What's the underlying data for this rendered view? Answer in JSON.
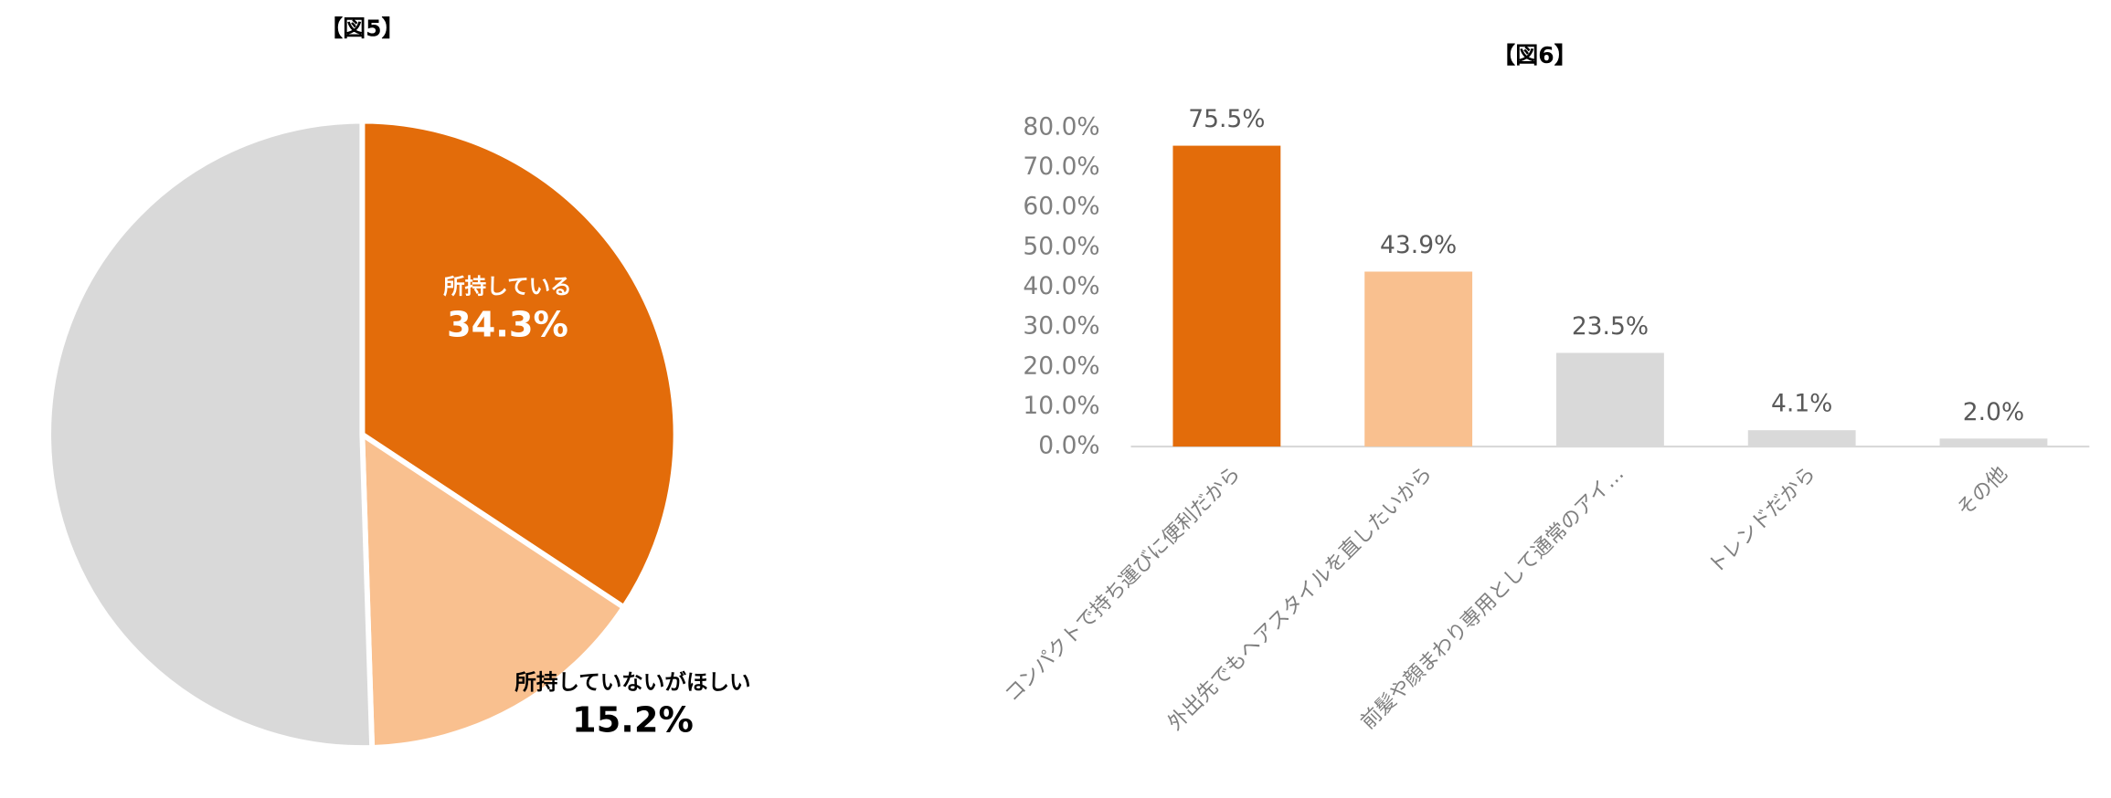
{
  "chart_data": [
    {
      "type": "pie",
      "title": "【図5】",
      "categories": [
        "所持している",
        "所持していないがほしい",
        null
      ],
      "values": [
        34.3,
        15.2,
        50.5
      ],
      "value_labels": [
        "34.3%",
        "15.2%",
        null
      ],
      "colors": [
        "#e36c0a",
        "#f9c08f",
        "#d9d9d9"
      ]
    },
    {
      "type": "bar",
      "title": "【図6】",
      "categories": [
        "コンパクトで持ち運びに便利だから",
        "外出先でもヘアスタイルを直したいから",
        "前髪や顔まわり専用として通常のアイ…",
        "トレンドだから",
        "その他"
      ],
      "values": [
        75.5,
        43.9,
        23.5,
        4.1,
        2.0
      ],
      "value_labels": [
        "75.5%",
        "43.9%",
        "23.5%",
        "4.1%",
        "2.0%"
      ],
      "colors": [
        "#e36c0a",
        "#f9c08f",
        "#d9d9d9",
        "#d9d9d9",
        "#d9d9d9"
      ],
      "ylim": [
        0,
        80
      ],
      "yticks": [
        {
          "value": 0,
          "label": "0.0%"
        },
        {
          "value": 10,
          "label": "10.0%"
        },
        {
          "value": 20,
          "label": "20.0%"
        },
        {
          "value": 30,
          "label": "30.0%"
        },
        {
          "value": 40,
          "label": "40.0%"
        },
        {
          "value": 50,
          "label": "50.0%"
        },
        {
          "value": 60,
          "label": "60.0%"
        },
        {
          "value": 70,
          "label": "70.0%"
        },
        {
          "value": 80,
          "label": "80.0%"
        }
      ],
      "grid": false
    }
  ]
}
